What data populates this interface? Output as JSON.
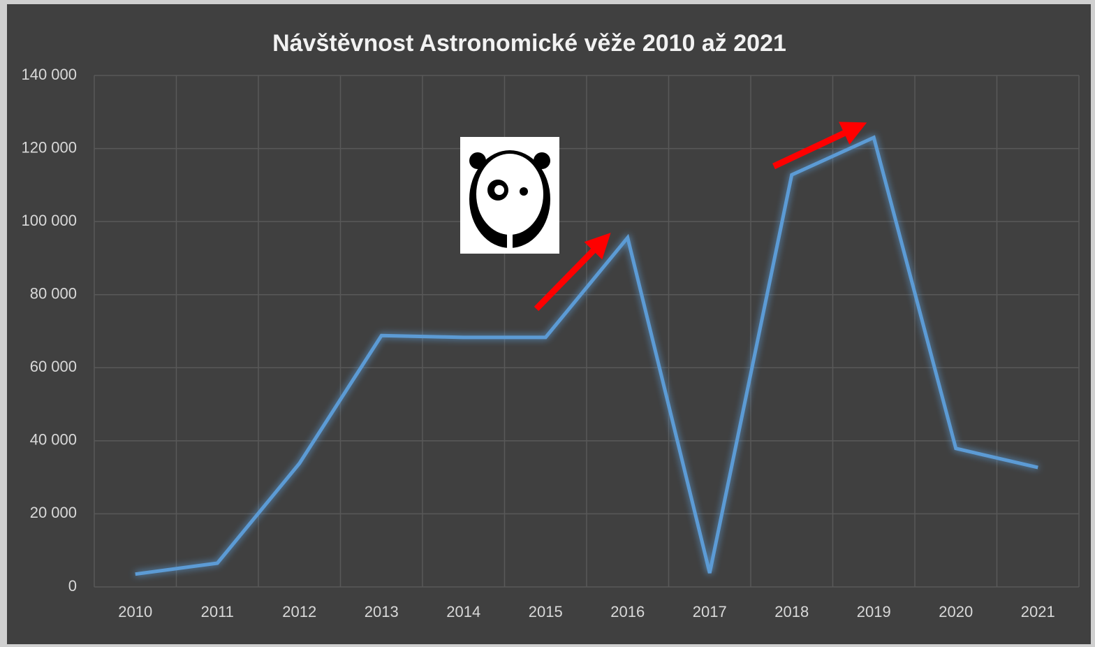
{
  "chart_data": {
    "type": "line",
    "title": "Návštěvnost Astronomické věže 2010 až 2021",
    "categories": [
      "2010",
      "2011",
      "2012",
      "2013",
      "2014",
      "2015",
      "2016",
      "2017",
      "2018",
      "2019",
      "2020",
      "2021"
    ],
    "series": [
      {
        "color": "#5b9bd5",
        "values": [
          3500,
          6500,
          33800,
          68800,
          68300,
          68300,
          95600,
          3800,
          112800,
          123000,
          37900,
          32700
        ]
      }
    ],
    "ylim": [
      0,
      140000
    ],
    "yticks": [
      0,
      {
        "value": 20000,
        "label": "20 000"
      },
      {
        "value": 40000,
        "label": "40 000"
      },
      {
        "value": 60000,
        "label": "60 000"
      },
      {
        "value": 80000,
        "label": "80 000"
      },
      {
        "value": 100000,
        "label": "100 000"
      },
      {
        "value": 120000,
        "label": "120 000"
      },
      {
        "value": 140000,
        "label": "140 000"
      }
    ],
    "grid": true
  }
}
